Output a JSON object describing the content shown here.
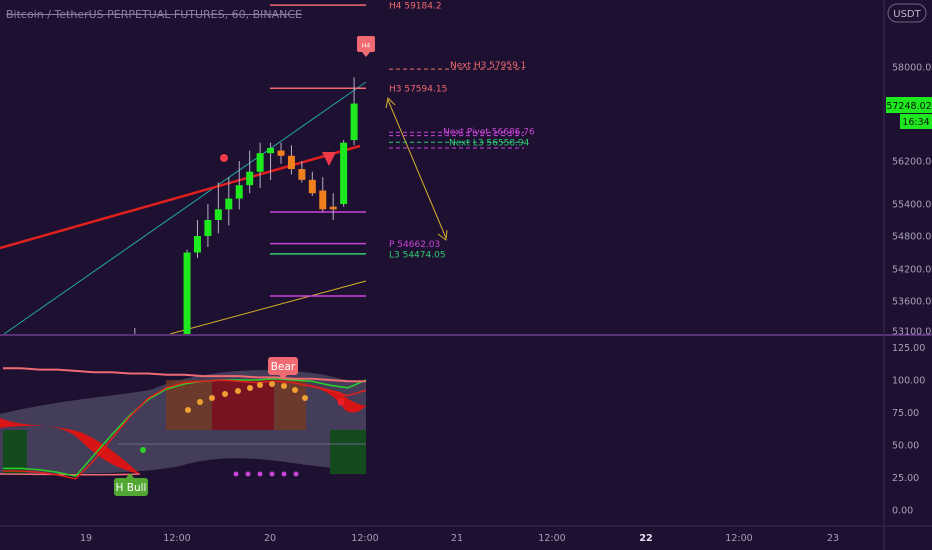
{
  "header": {
    "symbol_title": "Bitcoin / TetherUS PERPETUAL FUTURES, 60, BINANCE",
    "currency_badge": "USDT"
  },
  "colors": {
    "background": "#1e1030",
    "bull": "#1ee81e",
    "bear": "#f07f1e",
    "trend_red": "#e0201e",
    "teal": "#22a89e",
    "magenta": "#c845d8",
    "pink": "#f06a72",
    "gold": "#d6b12a",
    "separator": "#6b3e8a"
  },
  "chart_data": [
    {
      "type": "candlestick",
      "title": "Bitcoin / TetherUS PERPETUAL FUTURES, 60, BINANCE",
      "ylim": [
        52900,
        59300
      ],
      "y_ticks": [
        "58000.00",
        "56200.00",
        "55400.00",
        "54800.00",
        "54200.00",
        "53600.00",
        "53100.00"
      ],
      "y_tick_values": [
        58000,
        56200,
        55400,
        54800,
        54200,
        53600,
        53100
      ],
      "price_label": "57248.02",
      "countdown_label": "16:34",
      "candles": [
        {
          "x": 21,
          "open": 52900,
          "high": 53020,
          "low": 52900,
          "close": 52960
        },
        {
          "x": 33,
          "open": 52950,
          "high": 53150,
          "low": 52900,
          "close": 53050
        },
        {
          "x": 41,
          "open": 52920,
          "high": 53020,
          "low": 52900,
          "close": 52960
        },
        {
          "x": 48,
          "open": 52900,
          "high": 54550,
          "low": 52900,
          "close": 54500
        },
        {
          "x": 51,
          "open": 54500,
          "high": 55100,
          "low": 54400,
          "close": 54800
        },
        {
          "x": 54,
          "open": 54800,
          "high": 55400,
          "low": 54600,
          "close": 55100
        },
        {
          "x": 57,
          "open": 55100,
          "high": 55800,
          "low": 54850,
          "close": 55300
        },
        {
          "x": 60,
          "open": 55300,
          "high": 55900,
          "low": 55000,
          "close": 55500
        },
        {
          "x": 63,
          "open": 55500,
          "high": 56200,
          "low": 55300,
          "close": 55750
        },
        {
          "x": 66,
          "open": 55750,
          "high": 56400,
          "low": 55600,
          "close": 56000
        },
        {
          "x": 69,
          "open": 56000,
          "high": 56550,
          "low": 55700,
          "close": 56350
        },
        {
          "x": 72,
          "open": 56350,
          "high": 56550,
          "low": 55850,
          "close": 56450
        },
        {
          "x": 75,
          "open": 56400,
          "high": 56550,
          "low": 56150,
          "close": 56300
        },
        {
          "x": 78,
          "open": 56300,
          "high": 56500,
          "low": 55950,
          "close": 56050
        },
        {
          "x": 81,
          "open": 56050,
          "high": 56200,
          "low": 55800,
          "close": 55850
        },
        {
          "x": 84,
          "open": 55850,
          "high": 56000,
          "low": 55550,
          "close": 55600
        },
        {
          "x": 87,
          "open": 55650,
          "high": 55900,
          "low": 55250,
          "close": 55300
        },
        {
          "x": 90,
          "open": 55350,
          "high": 55600,
          "low": 55100,
          "close": 55300
        },
        {
          "x": 93,
          "open": 55400,
          "high": 56600,
          "low": 55350,
          "close": 56550
        },
        {
          "x": 96,
          "open": 56600,
          "high": 57800,
          "low": 56500,
          "close": 57300
        }
      ],
      "pivot_lines": [
        {
          "label": "H4 59184.2",
          "value": 59184.2,
          "color": "#f06a72"
        },
        {
          "label": "H3 57594.15",
          "value": 57594.15,
          "color": "#f06a72"
        },
        {
          "label": "P 54662.03",
          "value": 54662.03,
          "color": "#c845d8"
        },
        {
          "label": "L3 54474.05",
          "value": 54474.05,
          "color": "#2ecc71"
        }
      ],
      "next_pivots": [
        {
          "label": "Next H3 57959.1",
          "value": 57959.1,
          "color": "#f06a72"
        },
        {
          "label": "Next Pivot 56686.76",
          "value": 56686.76,
          "color": "#c845d8"
        },
        {
          "label": "Next L3 56558.94",
          "value": 56558.94,
          "color": "#2ecc71"
        }
      ],
      "markers": [
        {
          "label": "H4",
          "kind": "bear-signal-box"
        },
        {
          "kind": "red-dot"
        },
        {
          "kind": "red-triangle-down"
        }
      ]
    },
    {
      "type": "line",
      "title": "",
      "ylim": [
        -5,
        130
      ],
      "y_ticks": [
        "125.00",
        "100.00",
        "75.00",
        "50.00",
        "25.00",
        "0.00"
      ],
      "y_tick_values": [
        125,
        100,
        75,
        50,
        25,
        0
      ],
      "x": [
        0,
        5,
        10,
        15,
        20,
        25,
        30,
        35,
        40,
        45,
        50,
        55,
        60,
        65,
        70,
        75,
        80,
        85,
        90,
        95,
        100
      ],
      "series": [
        {
          "values": [
            32,
            32,
            31,
            29,
            26,
            42,
            58,
            73,
            85,
            93,
            97,
            99,
            100,
            100,
            100,
            101,
            100,
            99,
            96,
            94,
            100
          ],
          "color": "#2cd12c"
        },
        {
          "values": [
            30,
            30,
            29,
            27,
            24,
            38,
            55,
            72,
            86,
            94,
            98,
            99,
            100,
            99,
            98,
            99,
            98,
            95,
            92,
            88,
            92
          ],
          "color": "#e0201e"
        },
        {
          "values": [
            109,
            109,
            108,
            108,
            107,
            106,
            106,
            105,
            105,
            104,
            104,
            103,
            103,
            103,
            102,
            102,
            101,
            101,
            100,
            99,
            99
          ],
          "color": "#f06a72"
        }
      ],
      "annotations": [
        {
          "label": "Bear",
          "color": "#f06a72"
        },
        {
          "label": "H Bull",
          "color": "#52a832"
        }
      ]
    }
  ],
  "x_axis": {
    "labels": [
      "19",
      "12:00",
      "20",
      "12:00",
      "21",
      "12:00",
      "22",
      "12:00",
      "23"
    ],
    "bold_index": 6
  }
}
